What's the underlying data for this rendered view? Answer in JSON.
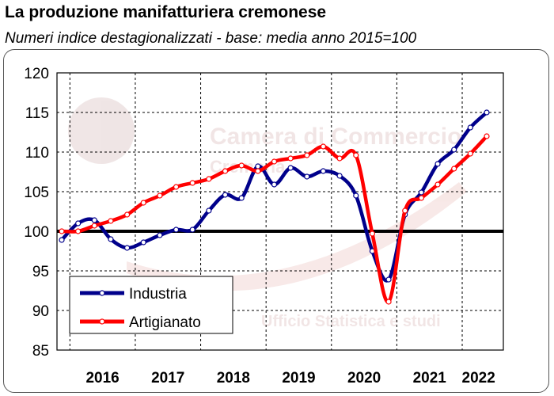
{
  "title": "La produzione manifatturiera cremonese",
  "subtitle": "Numeri indice destagionalizzati - base: media anno 2015=100",
  "watermark": {
    "line1": "Camera di Commercio",
    "line2": "Cremona",
    "line3": "Ufficio Statistica e studi"
  },
  "chart_data": {
    "type": "line",
    "title": "La produzione manifatturiera cremonese",
    "subtitle": "Numeri indice destagionalizzati - base: media anno 2015=100",
    "x_unit": "quarter",
    "x_start": "2015 Q4",
    "x_end": "2022 Q2",
    "x_quarters": [
      "2015 Q4",
      "2016 Q1",
      "2016 Q2",
      "2016 Q3",
      "2016 Q4",
      "2017 Q1",
      "2017 Q2",
      "2017 Q3",
      "2017 Q4",
      "2018 Q1",
      "2018 Q2",
      "2018 Q3",
      "2018 Q4",
      "2019 Q1",
      "2019 Q2",
      "2019 Q3",
      "2019 Q4",
      "2020 Q1",
      "2020 Q2",
      "2020 Q3",
      "2020 Q4",
      "2021 Q1",
      "2021 Q2",
      "2021 Q3",
      "2021 Q4",
      "2022 Q1",
      "2022 Q2"
    ],
    "xticks": [
      "2016",
      "2017",
      "2018",
      "2019",
      "2020",
      "2021",
      "2022"
    ],
    "ylim": [
      85,
      120
    ],
    "yticks": [
      85,
      90,
      95,
      100,
      105,
      110,
      115,
      120
    ],
    "grid": true,
    "reference_line": 100,
    "legend_position": "bottom-left",
    "series": [
      {
        "name": "Industria",
        "color": "#00008B",
        "values": [
          98.9,
          101.0,
          101.4,
          99.0,
          97.9,
          98.6,
          99.5,
          100.2,
          100.2,
          102.6,
          104.6,
          104.2,
          108.2,
          105.9,
          108.0,
          106.9,
          107.6,
          107.0,
          104.5,
          97.5,
          93.9,
          102.1,
          104.9,
          108.5,
          110.3,
          113.1,
          115.0
        ]
      },
      {
        "name": "Artigianato",
        "color": "#FF0000",
        "values": [
          100.0,
          100.0,
          100.7,
          101.3,
          102.1,
          103.6,
          104.5,
          105.6,
          106.1,
          106.6,
          107.6,
          108.3,
          107.6,
          108.8,
          109.2,
          109.6,
          110.7,
          109.2,
          109.6,
          99.7,
          91.1,
          102.6,
          104.2,
          105.9,
          107.9,
          109.8,
          112.0
        ]
      }
    ]
  }
}
